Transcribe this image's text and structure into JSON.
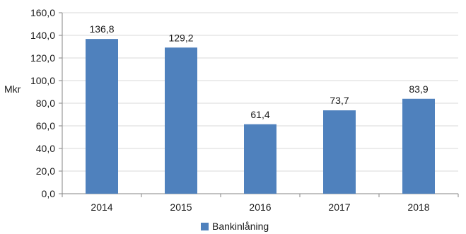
{
  "chart_data": {
    "type": "bar",
    "categories": [
      "2014",
      "2015",
      "2016",
      "2017",
      "2018"
    ],
    "series": [
      {
        "name": "Bankinlåning",
        "values": [
          136.8,
          129.2,
          61.4,
          73.7,
          83.9
        ],
        "value_labels": [
          "136,8",
          "129,2",
          "61,4",
          "73,7",
          "83,9"
        ],
        "color": "#4F81BD"
      }
    ],
    "title": "",
    "xlabel": "",
    "ylabel": "Mkr",
    "ylim": [
      0,
      160
    ],
    "yticks": [
      0,
      20,
      40,
      60,
      80,
      100,
      120,
      140,
      160
    ],
    "ytick_labels": [
      "0,0",
      "20,0",
      "40,0",
      "60,0",
      "80,0",
      "100,0",
      "120,0",
      "140,0",
      "160,0"
    ],
    "grid": true,
    "legend_position": "bottom"
  }
}
